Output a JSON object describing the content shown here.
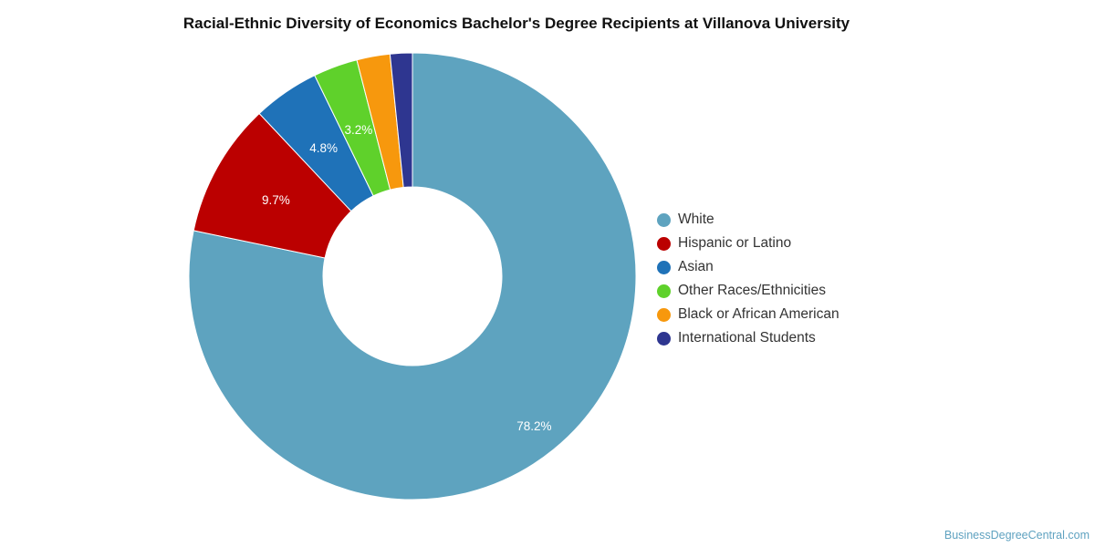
{
  "chart_data": {
    "type": "pie",
    "title": "Racial-Ethnic Diversity of Economics Bachelor's Degree Recipients at Villanova University",
    "donut": true,
    "legend_position": "right",
    "slices": [
      {
        "label": "White",
        "value": 78.2,
        "color": "#5ea3bf",
        "data_label": "78.2%"
      },
      {
        "label": "Hispanic or Latino",
        "value": 9.7,
        "color": "#bb0000",
        "data_label": "9.7%"
      },
      {
        "label": "Asian",
        "value": 4.8,
        "color": "#1f72b8",
        "data_label": "4.8%"
      },
      {
        "label": "Other Races/Ethnicities",
        "value": 3.2,
        "color": "#5fd12b",
        "data_label": "3.2%"
      },
      {
        "label": "Black or African American",
        "value": 2.4,
        "color": "#f7980d",
        "data_label": ""
      },
      {
        "label": "International Students",
        "value": 1.6,
        "color": "#2e3690",
        "data_label": ""
      }
    ]
  },
  "watermark": "BusinessDegreeCentral.com"
}
